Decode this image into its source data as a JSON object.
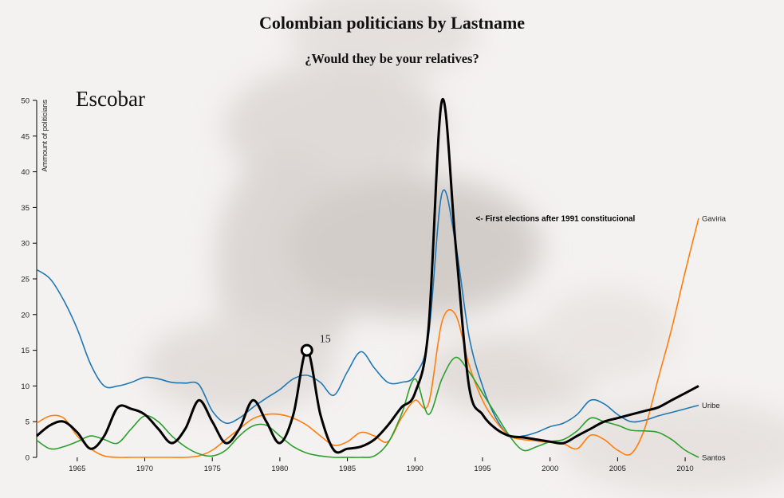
{
  "page": {
    "title": "Colombian politicians by Lastname",
    "subtitle": "¿Would they be your relatives?"
  },
  "chart_data": {
    "type": "line",
    "ylabel": "Ammount of politicians",
    "ylim": [
      0,
      50
    ],
    "xlim": [
      1962,
      2011
    ],
    "x_ticks": [
      1965,
      1970,
      1975,
      1980,
      1985,
      1990,
      1995,
      2000,
      2005,
      2010
    ],
    "y_ticks": [
      0,
      5,
      10,
      15,
      20,
      25,
      30,
      35,
      40,
      45,
      50
    ],
    "selected_series": "Escobar",
    "highlight": {
      "x": 1982,
      "y": 15,
      "label": "15"
    },
    "annotation": {
      "text": "<- First elections after 1991 constitucional",
      "x": 1994.5,
      "y": 33.5
    },
    "series": [
      {
        "name": "Uribe",
        "color": "#1f77b4",
        "width": 1.6,
        "x": [
          1962,
          1963,
          1964,
          1965,
          1966,
          1967,
          1968,
          1969,
          1970,
          1971,
          1972,
          1973,
          1974,
          1975,
          1976,
          1977,
          1978,
          1979,
          1980,
          1981,
          1982,
          1983,
          1984,
          1985,
          1986,
          1987,
          1988,
          1989,
          1990,
          1991,
          1992,
          1993,
          1994,
          1995,
          1996,
          1997,
          1998,
          1999,
          2000,
          2001,
          2002,
          2003,
          2004,
          2005,
          2006,
          2007,
          2008,
          2009,
          2010,
          2011
        ],
        "values": [
          26.3,
          25,
          22,
          18,
          13,
          10,
          10,
          10.5,
          11.2,
          11,
          10.5,
          10.4,
          10.2,
          6.5,
          4.8,
          5.5,
          7,
          8.3,
          9.5,
          11,
          11.5,
          10.5,
          8.7,
          12,
          14.8,
          12.5,
          10.5,
          10.5,
          11.5,
          17,
          37,
          30,
          17,
          10,
          5.5,
          3,
          3,
          3.5,
          4.3,
          4.8,
          6,
          8,
          7.5,
          6,
          5,
          5.2,
          5.8,
          6.3,
          6.8,
          7.3
        ]
      },
      {
        "name": "Gaviria",
        "color": "#ff7f0e",
        "width": 1.6,
        "x": [
          1962,
          1963,
          1964,
          1965,
          1966,
          1967,
          1968,
          1969,
          1970,
          1971,
          1972,
          1973,
          1974,
          1975,
          1976,
          1977,
          1978,
          1979,
          1980,
          1981,
          1982,
          1983,
          1984,
          1985,
          1986,
          1987,
          1988,
          1989,
          1990,
          1991,
          1992,
          1993,
          1994,
          1995,
          1996,
          1997,
          1998,
          1999,
          2000,
          2001,
          2002,
          2003,
          2004,
          2005,
          2006,
          2007,
          2008,
          2009,
          2010,
          2011
        ],
        "values": [
          4.8,
          5.8,
          5.5,
          3,
          1.2,
          0.2,
          0,
          0,
          0,
          0,
          0,
          0,
          0.2,
          1,
          2.5,
          4,
          5.4,
          6,
          6,
          5.5,
          4.5,
          3,
          1.7,
          2.2,
          3.5,
          3,
          2.2,
          5.5,
          8,
          7.5,
          19,
          20,
          13,
          8,
          5,
          3,
          2.5,
          2.3,
          2.1,
          1.9,
          1.2,
          3.1,
          2.5,
          1,
          0.5,
          4,
          11,
          18,
          26,
          33.5
        ]
      },
      {
        "name": "Santos",
        "color": "#2ca02c",
        "width": 1.6,
        "x": [
          1962,
          1963,
          1964,
          1965,
          1966,
          1967,
          1968,
          1969,
          1970,
          1971,
          1972,
          1973,
          1974,
          1975,
          1976,
          1977,
          1978,
          1979,
          1980,
          1981,
          1982,
          1983,
          1984,
          1985,
          1986,
          1987,
          1988,
          1989,
          1990,
          1991,
          1992,
          1993,
          1994,
          1995,
          1996,
          1997,
          1998,
          1999,
          2000,
          2001,
          2002,
          2003,
          2004,
          2005,
          2006,
          2007,
          2008,
          2009,
          2010,
          2011
        ],
        "values": [
          2.4,
          1.2,
          1.5,
          2.2,
          3,
          2.5,
          2,
          4,
          5.8,
          5,
          3,
          1.5,
          0.5,
          0.2,
          1,
          3,
          4.4,
          4.5,
          3,
          1.5,
          0.6,
          0.2,
          0,
          0,
          0,
          0.2,
          2,
          6,
          11,
          6,
          11,
          14,
          12,
          9,
          6,
          3,
          1,
          1.5,
          2.2,
          2.5,
          3.7,
          5.5,
          5,
          4.5,
          3.8,
          3.7,
          3.5,
          2.5,
          1,
          0
        ]
      },
      {
        "name": "Escobar",
        "color": "#000000",
        "width": 3,
        "x": [
          1962,
          1963,
          1964,
          1965,
          1966,
          1967,
          1968,
          1969,
          1970,
          1971,
          1972,
          1973,
          1974,
          1975,
          1976,
          1977,
          1978,
          1979,
          1980,
          1981,
          1982,
          1983,
          1984,
          1985,
          1986,
          1987,
          1988,
          1989,
          1990,
          1991,
          1992,
          1993,
          1994,
          1995,
          1996,
          1997,
          1998,
          1999,
          2000,
          2001,
          2002,
          2003,
          2004,
          2005,
          2006,
          2007,
          2008,
          2009,
          2010,
          2011
        ],
        "values": [
          3,
          4.5,
          5,
          3.5,
          1.2,
          3,
          7,
          6.8,
          6,
          4,
          2,
          4,
          8,
          5,
          2,
          4,
          8,
          5,
          2,
          6,
          15,
          6,
          1,
          1.2,
          1.5,
          2.5,
          4.5,
          7,
          9,
          18,
          50,
          30,
          10,
          6,
          4,
          3,
          2.8,
          2.5,
          2.2,
          2,
          3,
          4,
          5,
          5.5,
          6,
          6.5,
          7,
          8,
          9,
          10
        ]
      }
    ]
  }
}
